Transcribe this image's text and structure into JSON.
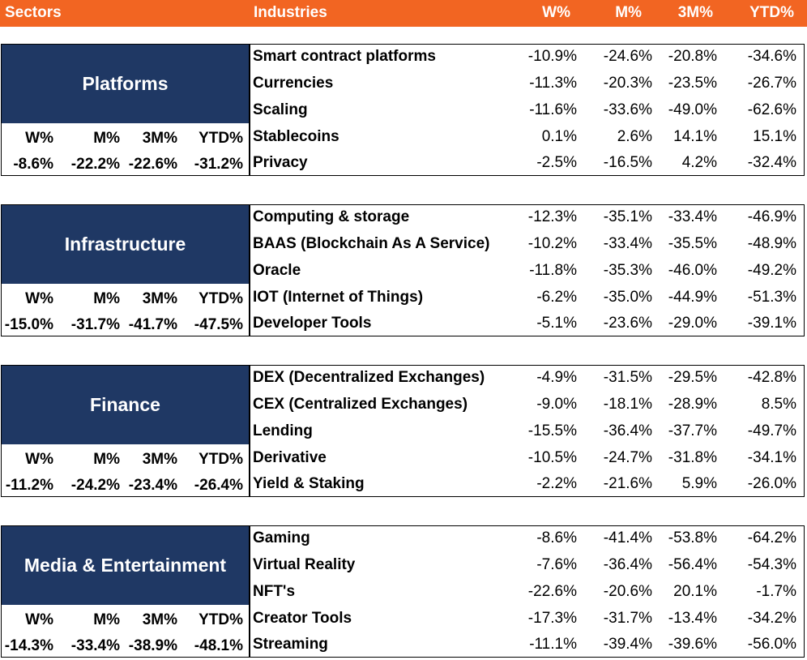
{
  "header": {
    "sectors": "Sectors",
    "industries": "Industries",
    "cols": [
      "W%",
      "M%",
      "3M%",
      "YTD%"
    ]
  },
  "chart_data": {
    "type": "table",
    "columns": [
      "W%",
      "M%",
      "3M%",
      "YTD%"
    ],
    "sectors": [
      {
        "name": "Platforms",
        "stat_headers": [
          "W%",
          "M%",
          "3M%",
          "YTD%"
        ],
        "stats": [
          "-8.6%",
          "-22.2%",
          "-22.6%",
          "-31.2%"
        ],
        "industries": [
          {
            "name": "Smart contract platforms",
            "values": [
              "-10.9%",
              "-24.6%",
              "-20.8%",
              "-34.6%"
            ]
          },
          {
            "name": "Currencies",
            "values": [
              "-11.3%",
              "-20.3%",
              "-23.5%",
              "-26.7%"
            ]
          },
          {
            "name": "Scaling",
            "values": [
              "-11.6%",
              "-33.6%",
              "-49.0%",
              "-62.6%"
            ]
          },
          {
            "name": "Stablecoins",
            "values": [
              "0.1%",
              "2.6%",
              "14.1%",
              "15.1%"
            ]
          },
          {
            "name": "Privacy",
            "values": [
              "-2.5%",
              "-16.5%",
              "4.2%",
              "-32.4%"
            ]
          }
        ]
      },
      {
        "name": "Infrastructure",
        "stat_headers": [
          "W%",
          "M%",
          "3M%",
          "YTD%"
        ],
        "stats": [
          "-15.0%",
          "-31.7%",
          "-41.7%",
          "-47.5%"
        ],
        "industries": [
          {
            "name": "Computing & storage",
            "values": [
              "-12.3%",
              "-35.1%",
              "-33.4%",
              "-46.9%"
            ]
          },
          {
            "name": "BAAS (Blockchain As A Service)",
            "values": [
              "-10.2%",
              "-33.4%",
              "-35.5%",
              "-48.9%"
            ]
          },
          {
            "name": "Oracle",
            "values": [
              "-11.8%",
              "-35.3%",
              "-46.0%",
              "-49.2%"
            ]
          },
          {
            "name": "IOT (Internet of Things)",
            "values": [
              "-6.2%",
              "-35.0%",
              "-44.9%",
              "-51.3%"
            ]
          },
          {
            "name": "Developer Tools",
            "values": [
              "-5.1%",
              "-23.6%",
              "-29.0%",
              "-39.1%"
            ]
          }
        ]
      },
      {
        "name": "Finance",
        "stat_headers": [
          "W%",
          "M%",
          "3M%",
          "YTD%"
        ],
        "stats": [
          "-11.2%",
          "-24.2%",
          "-23.4%",
          "-26.4%"
        ],
        "industries": [
          {
            "name": "DEX (Decentralized Exchanges)",
            "values": [
              "-4.9%",
              "-31.5%",
              "-29.5%",
              "-42.8%"
            ]
          },
          {
            "name": "CEX (Centralized Exchanges)",
            "values": [
              "-9.0%",
              "-18.1%",
              "-28.9%",
              "8.5%"
            ]
          },
          {
            "name": "Lending",
            "values": [
              "-15.5%",
              "-36.4%",
              "-37.7%",
              "-49.7%"
            ]
          },
          {
            "name": "Derivative",
            "values": [
              "-10.5%",
              "-24.7%",
              "-31.8%",
              "-34.1%"
            ]
          },
          {
            "name": "Yield & Staking",
            "values": [
              "-2.2%",
              "-21.6%",
              "5.9%",
              "-26.0%"
            ]
          }
        ]
      },
      {
        "name": "Media & Entertainment",
        "stat_headers": [
          "W%",
          "M%",
          "3M%",
          "YTD%"
        ],
        "stats": [
          "-14.3%",
          "-33.4%",
          "-38.9%",
          "-48.1%"
        ],
        "industries": [
          {
            "name": "Gaming",
            "values": [
              "-8.6%",
              "-41.4%",
              "-53.8%",
              "-64.2%"
            ]
          },
          {
            "name": "Virtual Reality",
            "values": [
              "-7.6%",
              "-36.4%",
              "-56.4%",
              "-54.3%"
            ]
          },
          {
            "name": "NFT's",
            "values": [
              "-22.6%",
              "-20.6%",
              "20.1%",
              "-1.7%"
            ]
          },
          {
            "name": "Creator Tools",
            "values": [
              "-17.3%",
              "-31.7%",
              "-13.4%",
              "-34.2%"
            ]
          },
          {
            "name": "Streaming",
            "values": [
              "-11.1%",
              "-39.4%",
              "-39.6%",
              "-56.0%"
            ]
          }
        ]
      }
    ]
  },
  "colors": {
    "header_bg": "#f26522",
    "sector_bg": "#1f3864"
  }
}
